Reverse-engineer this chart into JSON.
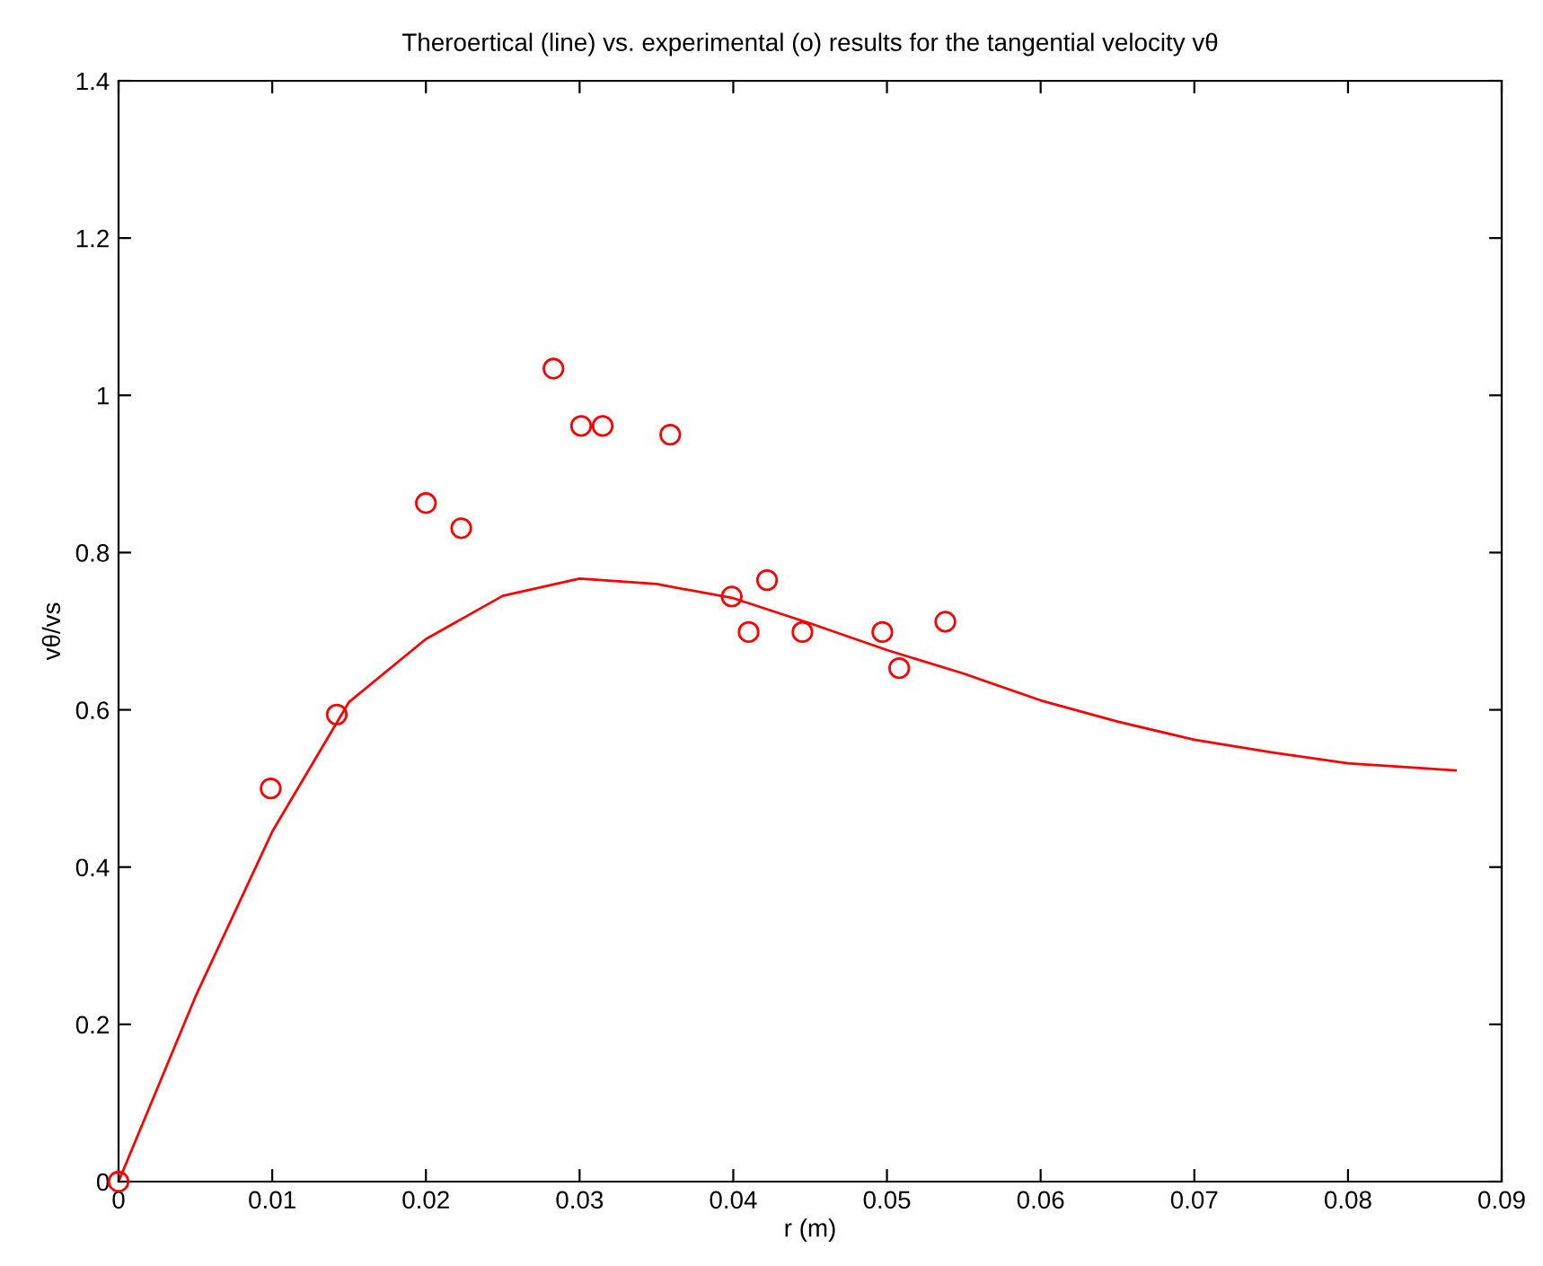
{
  "chart_data": {
    "type": "scatter",
    "title": "Theroertical (line) vs. experimental (o) results for the tangential velocity vθ",
    "xlabel": "r (m)",
    "ylabel": "vθ/vs",
    "series": [
      {
        "type": "line",
        "color": "#ff0000",
        "marker": "none",
        "line_style": "solid",
        "x": [
          0,
          0.002,
          0.005,
          0.01,
          0.015,
          0.02,
          0.025,
          0.03,
          0.035,
          0.04,
          0.045,
          0.05,
          0.055,
          0.06,
          0.065,
          0.07,
          0.075,
          0.08,
          0.087
        ],
        "values": [
          0,
          0.094,
          0.235,
          0.445,
          0.61,
          0.69,
          0.745,
          0.767,
          0.76,
          0.742,
          0.71,
          0.676,
          0.646,
          0.612,
          0.585,
          0.562,
          0.546,
          0.532,
          0.523
        ]
      },
      {
        "color": "#ff0000",
        "marker": "circle",
        "x": [
          0,
          0.0099,
          0.0142,
          0.02,
          0.0223,
          0.0283,
          0.0301,
          0.0315,
          0.0359,
          0.0399,
          0.041,
          0.0422,
          0.0445,
          0.0497,
          0.0508,
          0.0538
        ],
        "values": [
          0,
          0.5,
          0.594,
          0.863,
          0.831,
          1.034,
          0.961,
          0.961,
          0.95,
          0.744,
          0.699,
          0.765,
          0.699,
          0.699,
          0.653,
          0.712
        ]
      }
    ],
    "xlim": [
      0,
      0.09
    ],
    "xticks": [
      0,
      0.01,
      0.02,
      0.03,
      0.04,
      0.05,
      0.06,
      0.07,
      0.08,
      0.09
    ],
    "ylim": [
      0,
      1.4
    ],
    "yticks": [
      0,
      {
        "value": 0.2,
        "label": "0.2"
      },
      {
        "value": 0.4,
        "label": "0.4"
      },
      {
        "value": 0.6,
        "label": "0.6"
      },
      {
        "value": 0.8,
        "label": "0.8"
      },
      1,
      {
        "value": 1.2,
        "label": "1.2"
      },
      {
        "value": 1.4,
        "label": "1.4"
      }
    ],
    "grid": false
  }
}
